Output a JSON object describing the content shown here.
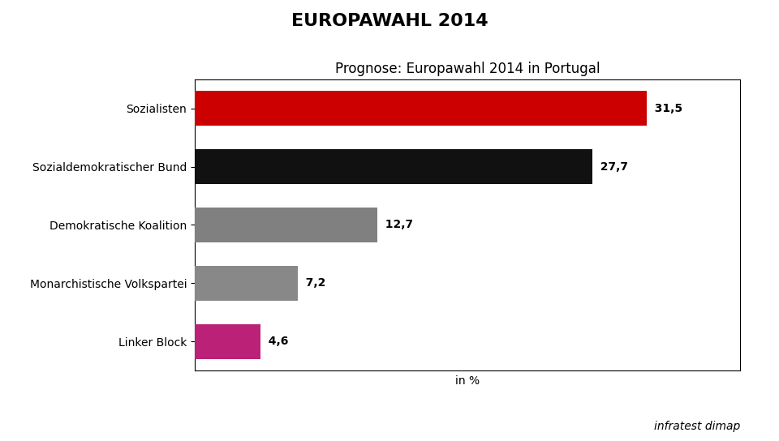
{
  "chart_data": {
    "type": "bar",
    "orientation": "horizontal",
    "title": "EUROPAWAHL 2014",
    "subtitle": "Prognose: Europawahl 2014 in Portugal",
    "x_label": "in %",
    "source": "infratest dimap",
    "categories": [
      "Sozialisten",
      "Sozialdemokratischer Bund",
      "Demokratische Koalition",
      "Monarchistische Volkspartei",
      "Linker Block"
    ],
    "values": [
      31.5,
      27.7,
      12.7,
      7.2,
      4.6
    ],
    "value_labels": [
      "31,5",
      "27,7",
      "12,7",
      "7,2",
      "4,6"
    ],
    "data_labels": true,
    "colors": [
      "#cc0000",
      "#111111",
      "#808080",
      "#888888",
      "#bb2277"
    ],
    "xlim": [
      0,
      38
    ],
    "tick_labels": "y",
    "grid": false
  }
}
